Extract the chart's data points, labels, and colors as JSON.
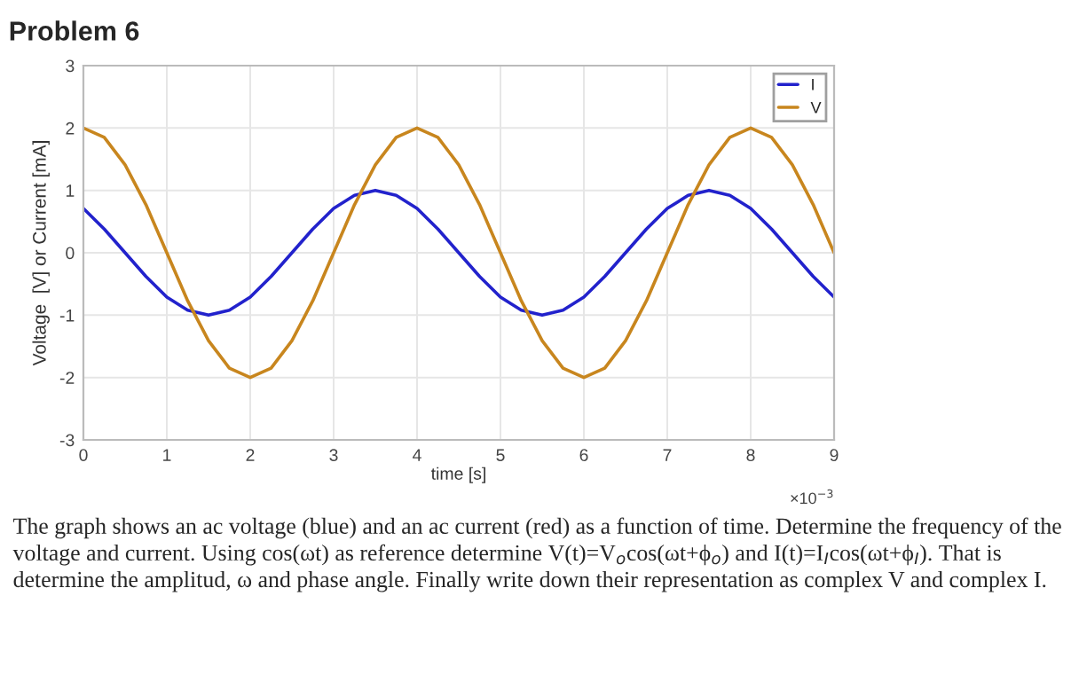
{
  "chart_data": {
    "type": "line",
    "title": "Problem 6",
    "xlabel": "time [s]",
    "ylabel": "Voltage  [V] or Current [mA]",
    "x": [
      0,
      0.25,
      0.5,
      0.75,
      1,
      1.25,
      1.5,
      1.75,
      2,
      2.25,
      2.5,
      2.75,
      3,
      3.25,
      3.5,
      3.75,
      4,
      4.25,
      4.5,
      4.75,
      5,
      5.25,
      5.5,
      5.75,
      6,
      6.25,
      6.5,
      6.75,
      7,
      7.25,
      7.5,
      7.75,
      8,
      8.25,
      8.5,
      8.75,
      9
    ],
    "series": [
      {
        "name": "I",
        "color": "#2222cc",
        "values": [
          0.71,
          0.38,
          0,
          -0.38,
          -0.71,
          -0.92,
          -1,
          -0.92,
          -0.71,
          -0.38,
          0,
          0.38,
          0.71,
          0.92,
          1,
          0.92,
          0.71,
          0.38,
          0,
          -0.38,
          -0.71,
          -0.92,
          -1,
          -0.92,
          -0.71,
          -0.38,
          0,
          0.38,
          0.71,
          0.92,
          1,
          0.92,
          0.71,
          0.38,
          0,
          -0.38,
          -0.71
        ]
      },
      {
        "name": "V",
        "color": "#c8861e",
        "values": [
          2,
          1.85,
          1.41,
          0.77,
          0,
          -0.77,
          -1.41,
          -1.85,
          -2,
          -1.85,
          -1.41,
          -0.77,
          0,
          0.77,
          1.41,
          1.85,
          2,
          1.85,
          1.41,
          0.77,
          0,
          -0.77,
          -1.41,
          -1.85,
          -2,
          -1.85,
          -1.41,
          -0.77,
          0,
          0.77,
          1.41,
          1.85,
          2,
          1.85,
          1.41,
          0.77,
          0
        ]
      }
    ],
    "xlim": [
      0,
      9
    ],
    "xticks": [
      0,
      1,
      2,
      3,
      4,
      5,
      6,
      7,
      8,
      9
    ],
    "ylim": [
      -3,
      3
    ],
    "yticks": [
      -3,
      -2,
      -1,
      0,
      1,
      2,
      3
    ],
    "grid": true,
    "legend": "top right",
    "line_style": "solid",
    "marker": "none",
    "annotations": [
      "×10$^{−3}$",
      "The graph shows an ac voltage (blue) and an ac current (red) as a function of time. Determine the frequency of the voltage and current. Using cos(ωt) as reference determine V(t)=V$_{o}$cos(ωt+ϕ$_{o}$) and I(t)=I$_{I}$cos(ωt+ϕ$_{I}$). That is determine the amplitud, ω and phase angle. Finally write down their representation as complex V and complex I."
    ]
  }
}
